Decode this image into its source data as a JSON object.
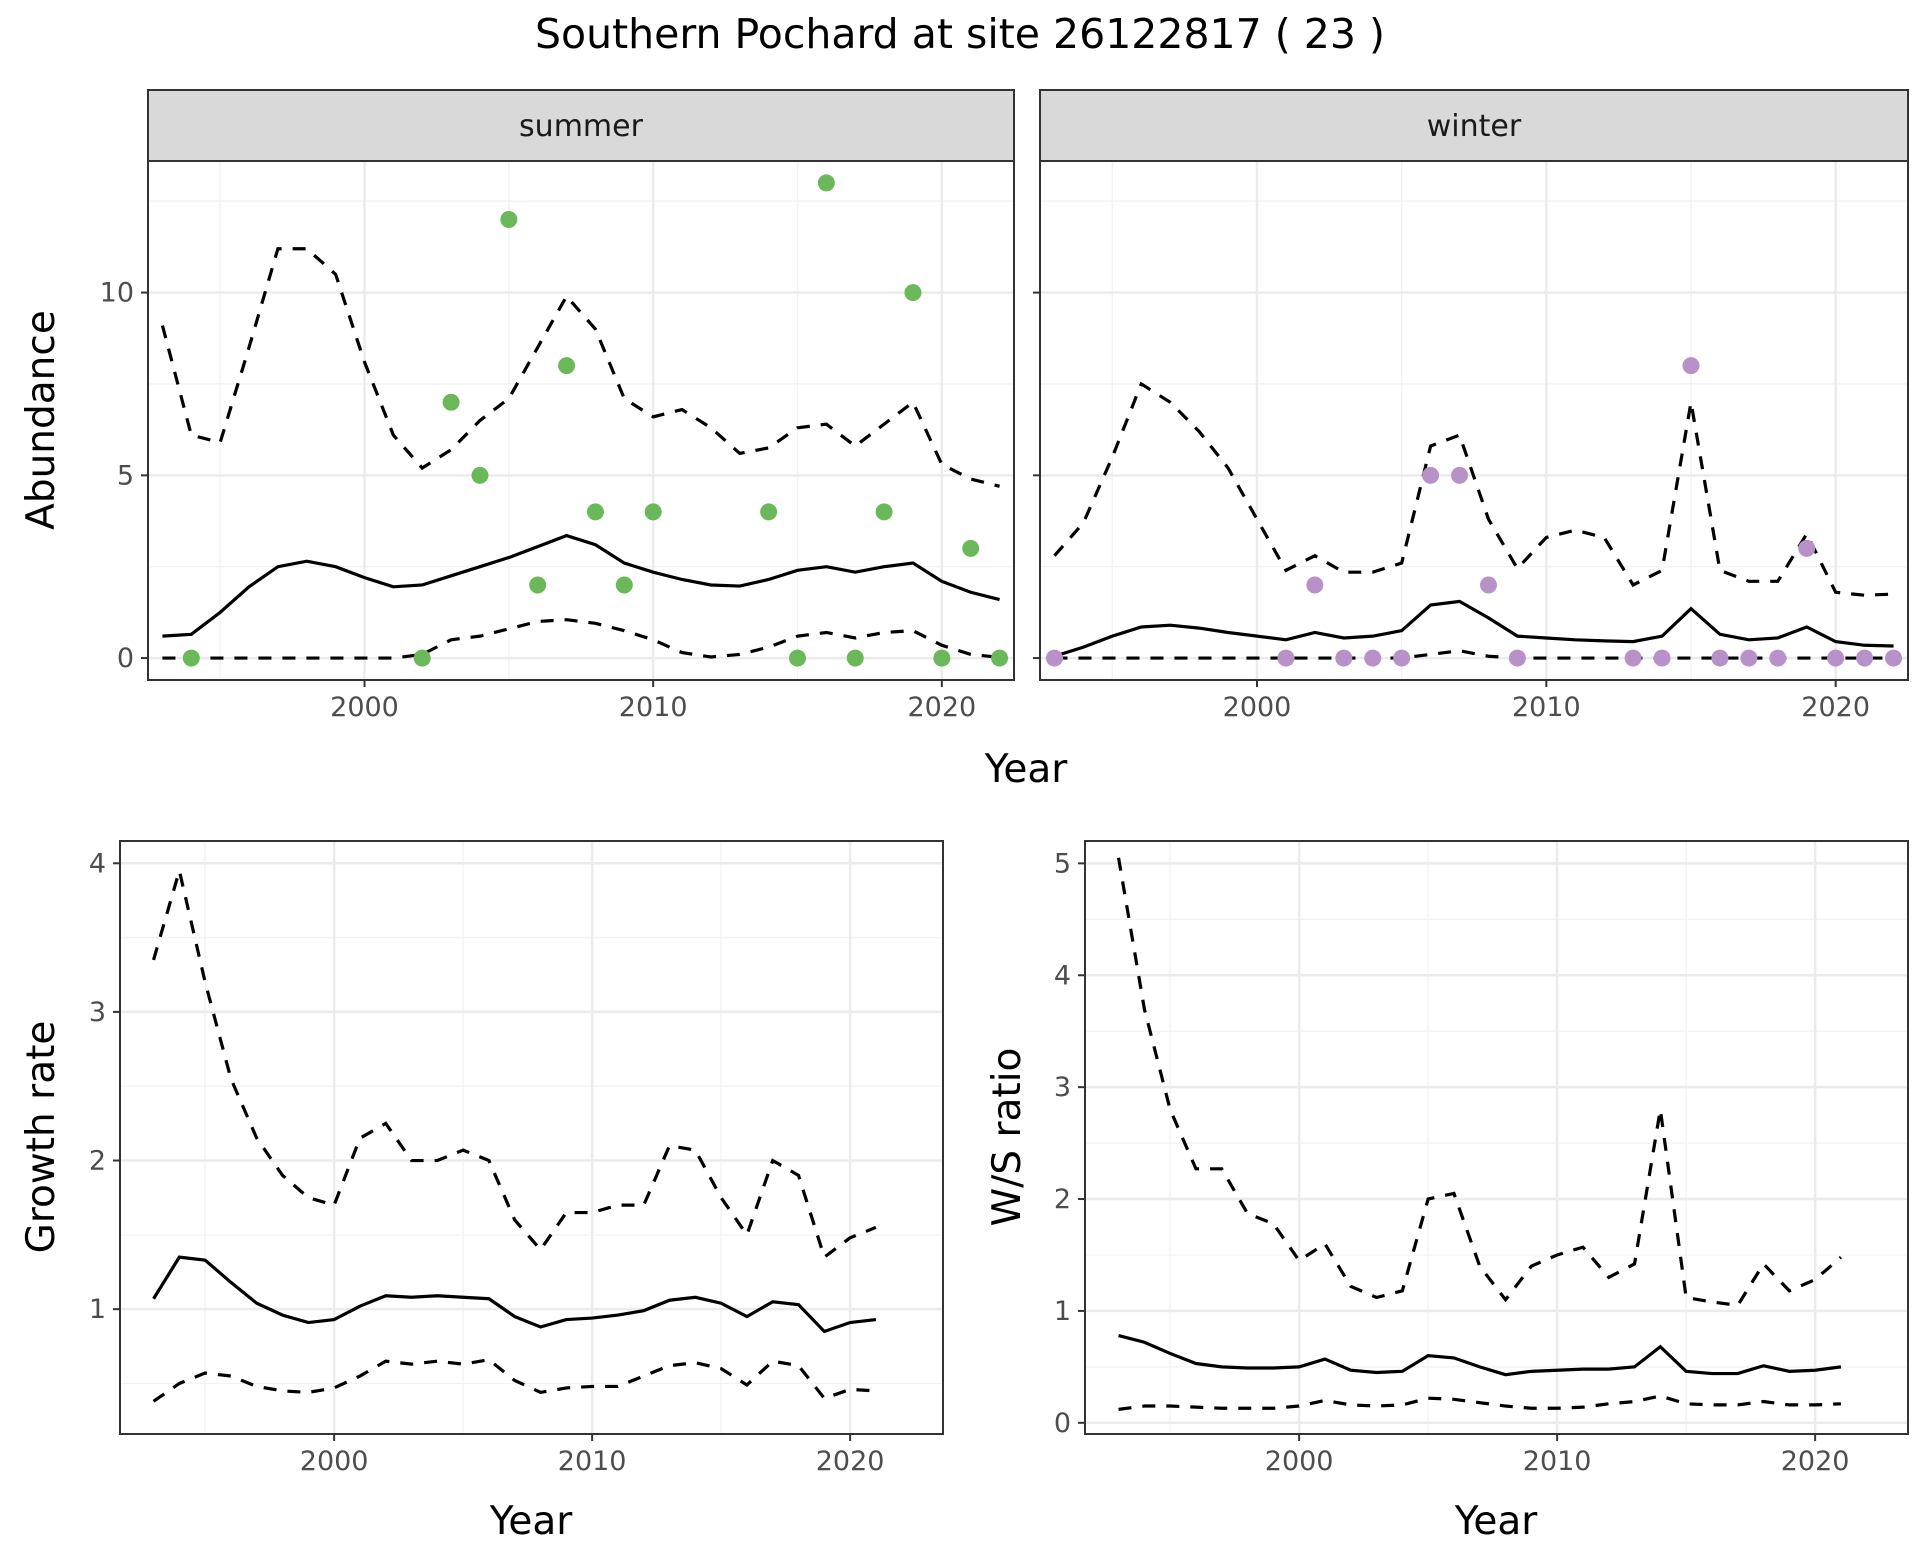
{
  "title": "Southern Pochard at site 26122817 ( 23 )",
  "colors": {
    "summer_points": "#6ab859",
    "winter_points": "#b891c9"
  },
  "chart_data": [
    {
      "type": "line",
      "panel": "summer",
      "strip_label": "summer",
      "ylabel": "Abundance",
      "xlabel": "Year",
      "xlim": [
        1992.5,
        2022.5
      ],
      "ylim": [
        -0.6,
        13.6
      ],
      "x_ticks": [
        2000,
        2010,
        2020
      ],
      "y_ticks": [
        0,
        5,
        10
      ],
      "x_tick_labels": [
        "2000",
        "2010",
        "2020"
      ],
      "y_tick_labels": [
        "0",
        "5",
        "10"
      ],
      "grid": true,
      "x": [
        1993,
        1994,
        1995,
        1996,
        1997,
        1998,
        1999,
        2000,
        2001,
        2002,
        2003,
        2004,
        2005,
        2006,
        2007,
        2008,
        2009,
        2010,
        2011,
        2012,
        2013,
        2014,
        2015,
        2016,
        2017,
        2018,
        2019,
        2020,
        2021,
        2022
      ],
      "series": [
        {
          "style": "solid",
          "values": [
            0.6,
            0.65,
            1.25,
            1.95,
            2.5,
            2.65,
            2.5,
            2.2,
            1.95,
            2.0,
            2.25,
            2.5,
            2.75,
            3.05,
            3.35,
            3.1,
            2.6,
            2.35,
            2.15,
            2.0,
            1.97,
            2.15,
            2.4,
            2.5,
            2.35,
            2.5,
            2.6,
            2.1,
            1.8,
            1.6
          ]
        },
        {
          "style": "dashed",
          "values": [
            9.1,
            6.1,
            5.9,
            8.5,
            11.2,
            11.2,
            10.5,
            8.1,
            6.1,
            5.2,
            5.7,
            6.5,
            7.1,
            8.5,
            9.9,
            9.0,
            7.1,
            6.6,
            6.8,
            6.3,
            5.6,
            5.75,
            6.3,
            6.4,
            5.8,
            6.4,
            7.0,
            5.3,
            4.9,
            4.7
          ]
        },
        {
          "style": "dashed",
          "values": [
            0,
            0,
            0,
            0,
            0,
            0,
            0,
            0,
            0,
            0.1,
            0.5,
            0.6,
            0.8,
            1.0,
            1.05,
            0.95,
            0.75,
            0.5,
            0.15,
            0.03,
            0.1,
            0.3,
            0.6,
            0.7,
            0.55,
            0.7,
            0.75,
            0.35,
            0.1,
            0.02
          ]
        }
      ],
      "points": [
        {
          "x": 1994,
          "y": 0
        },
        {
          "x": 2002,
          "y": 0
        },
        {
          "x": 2003,
          "y": 7
        },
        {
          "x": 2004,
          "y": 5
        },
        {
          "x": 2005,
          "y": 12
        },
        {
          "x": 2006,
          "y": 2
        },
        {
          "x": 2007,
          "y": 8
        },
        {
          "x": 2008,
          "y": 4
        },
        {
          "x": 2009,
          "y": 2
        },
        {
          "x": 2010,
          "y": 4
        },
        {
          "x": 2014,
          "y": 4
        },
        {
          "x": 2015,
          "y": 0
        },
        {
          "x": 2016,
          "y": 13
        },
        {
          "x": 2017,
          "y": 0
        },
        {
          "x": 2018,
          "y": 4
        },
        {
          "x": 2019,
          "y": 10
        },
        {
          "x": 2020,
          "y": 0
        },
        {
          "x": 2021,
          "y": 3
        },
        {
          "x": 2022,
          "y": 0
        }
      ]
    },
    {
      "type": "line",
      "panel": "winter",
      "strip_label": "winter",
      "ylabel": "",
      "xlabel": "",
      "xlim": [
        1992.5,
        2022.5
      ],
      "ylim": [
        -0.6,
        13.6
      ],
      "x_ticks": [
        2000,
        2010,
        2020
      ],
      "y_ticks": [
        0,
        5,
        10
      ],
      "x_tick_labels": [
        "2000",
        "2010",
        "2020"
      ],
      "y_tick_labels": [],
      "grid": true,
      "x": [
        1993,
        1994,
        1995,
        1996,
        1997,
        1998,
        1999,
        2000,
        2001,
        2002,
        2003,
        2004,
        2005,
        2006,
        2007,
        2008,
        2009,
        2010,
        2011,
        2012,
        2013,
        2014,
        2015,
        2016,
        2017,
        2018,
        2019,
        2020,
        2021,
        2022
      ],
      "series": [
        {
          "style": "solid",
          "values": [
            0.05,
            0.3,
            0.6,
            0.85,
            0.9,
            0.82,
            0.7,
            0.6,
            0.5,
            0.7,
            0.55,
            0.6,
            0.75,
            1.45,
            1.55,
            1.1,
            0.6,
            0.55,
            0.5,
            0.47,
            0.45,
            0.6,
            1.35,
            0.65,
            0.5,
            0.55,
            0.85,
            0.45,
            0.35,
            0.33
          ]
        },
        {
          "style": "dashed",
          "values": [
            2.8,
            3.7,
            5.5,
            7.5,
            7.0,
            6.2,
            5.2,
            3.8,
            2.4,
            2.8,
            2.35,
            2.35,
            2.6,
            5.8,
            6.1,
            3.8,
            2.45,
            3.3,
            3.5,
            3.3,
            2.0,
            2.4,
            7.0,
            2.4,
            2.1,
            2.1,
            3.4,
            1.8,
            1.72,
            1.75
          ]
        },
        {
          "style": "dashed",
          "values": [
            0,
            0,
            0,
            0,
            0,
            0,
            0,
            0,
            0,
            0,
            0,
            0,
            0,
            0.1,
            0.2,
            0.05,
            0,
            0,
            0,
            0,
            0,
            0,
            0,
            0,
            0,
            0,
            0,
            0,
            0,
            0
          ]
        }
      ],
      "points": [
        {
          "x": 1993,
          "y": 0
        },
        {
          "x": 2001,
          "y": 0
        },
        {
          "x": 2002,
          "y": 2
        },
        {
          "x": 2003,
          "y": 0
        },
        {
          "x": 2004,
          "y": 0
        },
        {
          "x": 2005,
          "y": 0
        },
        {
          "x": 2006,
          "y": 5
        },
        {
          "x": 2007,
          "y": 5
        },
        {
          "x": 2008,
          "y": 2
        },
        {
          "x": 2009,
          "y": 0
        },
        {
          "x": 2013,
          "y": 0
        },
        {
          "x": 2014,
          "y": 0
        },
        {
          "x": 2015,
          "y": 8
        },
        {
          "x": 2016,
          "y": 0
        },
        {
          "x": 2017,
          "y": 0
        },
        {
          "x": 2018,
          "y": 0
        },
        {
          "x": 2019,
          "y": 3
        },
        {
          "x": 2020,
          "y": 0
        },
        {
          "x": 2021,
          "y": 0
        },
        {
          "x": 2022,
          "y": 0
        }
      ]
    },
    {
      "type": "line",
      "panel": "growth",
      "ylabel": "Growth rate",
      "xlabel": "Year",
      "xlim": [
        1991.7,
        2023.6
      ],
      "ylim": [
        0.16,
        4.15
      ],
      "x_ticks": [
        2000,
        2010,
        2020
      ],
      "y_ticks": [
        1,
        2,
        3,
        4
      ],
      "x_tick_labels": [
        "2000",
        "2010",
        "2020"
      ],
      "y_tick_labels": [
        "1",
        "2",
        "3",
        "4"
      ],
      "grid": true,
      "x": [
        1993,
        1994,
        1995,
        1996,
        1997,
        1998,
        1999,
        2000,
        2001,
        2002,
        2003,
        2004,
        2005,
        2006,
        2007,
        2008,
        2009,
        2010,
        2011,
        2012,
        2013,
        2014,
        2015,
        2016,
        2017,
        2018,
        2019,
        2020,
        2021
      ],
      "series": [
        {
          "style": "solid",
          "values": [
            1.07,
            1.35,
            1.33,
            1.18,
            1.04,
            0.96,
            0.91,
            0.93,
            1.02,
            1.09,
            1.08,
            1.09,
            1.08,
            1.07,
            0.95,
            0.88,
            0.93,
            0.94,
            0.96,
            0.99,
            1.06,
            1.08,
            1.04,
            0.95,
            1.05,
            1.03,
            0.85,
            0.91,
            0.93
          ]
        },
        {
          "style": "dashed",
          "values": [
            3.35,
            3.95,
            3.2,
            2.55,
            2.15,
            1.9,
            1.75,
            1.7,
            2.15,
            2.25,
            2.0,
            2.0,
            2.07,
            2.0,
            1.6,
            1.4,
            1.65,
            1.65,
            1.7,
            1.7,
            2.1,
            2.07,
            1.75,
            1.5,
            2.0,
            1.9,
            1.35,
            1.48,
            1.55
          ]
        },
        {
          "style": "dashed",
          "values": [
            0.38,
            0.5,
            0.57,
            0.55,
            0.48,
            0.45,
            0.44,
            0.47,
            0.55,
            0.65,
            0.63,
            0.65,
            0.63,
            0.66,
            0.52,
            0.44,
            0.47,
            0.48,
            0.48,
            0.55,
            0.62,
            0.64,
            0.6,
            0.49,
            0.65,
            0.62,
            0.4,
            0.46,
            0.45
          ]
        }
      ]
    },
    {
      "type": "line",
      "panel": "ws_ratio",
      "ylabel": "W/S ratio",
      "xlabel": "Year",
      "xlim": [
        1991.7,
        2023.6
      ],
      "ylim": [
        -0.1,
        5.2
      ],
      "x_ticks": [
        2000,
        2010,
        2020
      ],
      "y_ticks": [
        0,
        1,
        2,
        3,
        4,
        5
      ],
      "x_tick_labels": [
        "2000",
        "2010",
        "2020"
      ],
      "y_tick_labels": [
        "0",
        "1",
        "2",
        "3",
        "4",
        "5"
      ],
      "grid": true,
      "x": [
        1993,
        1994,
        1995,
        1996,
        1997,
        1998,
        1999,
        2000,
        2001,
        2002,
        2003,
        2004,
        2005,
        2006,
        2007,
        2008,
        2009,
        2010,
        2011,
        2012,
        2013,
        2014,
        2015,
        2016,
        2017,
        2018,
        2019,
        2020,
        2021
      ],
      "series": [
        {
          "style": "solid",
          "values": [
            0.78,
            0.72,
            0.62,
            0.53,
            0.5,
            0.49,
            0.49,
            0.5,
            0.57,
            0.47,
            0.45,
            0.46,
            0.6,
            0.58,
            0.5,
            0.43,
            0.46,
            0.47,
            0.48,
            0.48,
            0.5,
            0.68,
            0.46,
            0.44,
            0.44,
            0.51,
            0.46,
            0.47,
            0.5
          ]
        },
        {
          "style": "dashed",
          "values": [
            5.05,
            3.7,
            2.8,
            2.27,
            2.27,
            1.87,
            1.78,
            1.45,
            1.6,
            1.22,
            1.12,
            1.18,
            2.0,
            2.05,
            1.4,
            1.1,
            1.4,
            1.5,
            1.57,
            1.3,
            1.42,
            2.8,
            1.12,
            1.08,
            1.05,
            1.42,
            1.18,
            1.28,
            1.48
          ]
        },
        {
          "style": "dashed",
          "values": [
            0.12,
            0.15,
            0.15,
            0.14,
            0.13,
            0.13,
            0.13,
            0.15,
            0.2,
            0.16,
            0.15,
            0.16,
            0.22,
            0.21,
            0.18,
            0.15,
            0.13,
            0.13,
            0.14,
            0.17,
            0.19,
            0.24,
            0.17,
            0.16,
            0.16,
            0.19,
            0.16,
            0.16,
            0.17
          ]
        }
      ]
    }
  ]
}
